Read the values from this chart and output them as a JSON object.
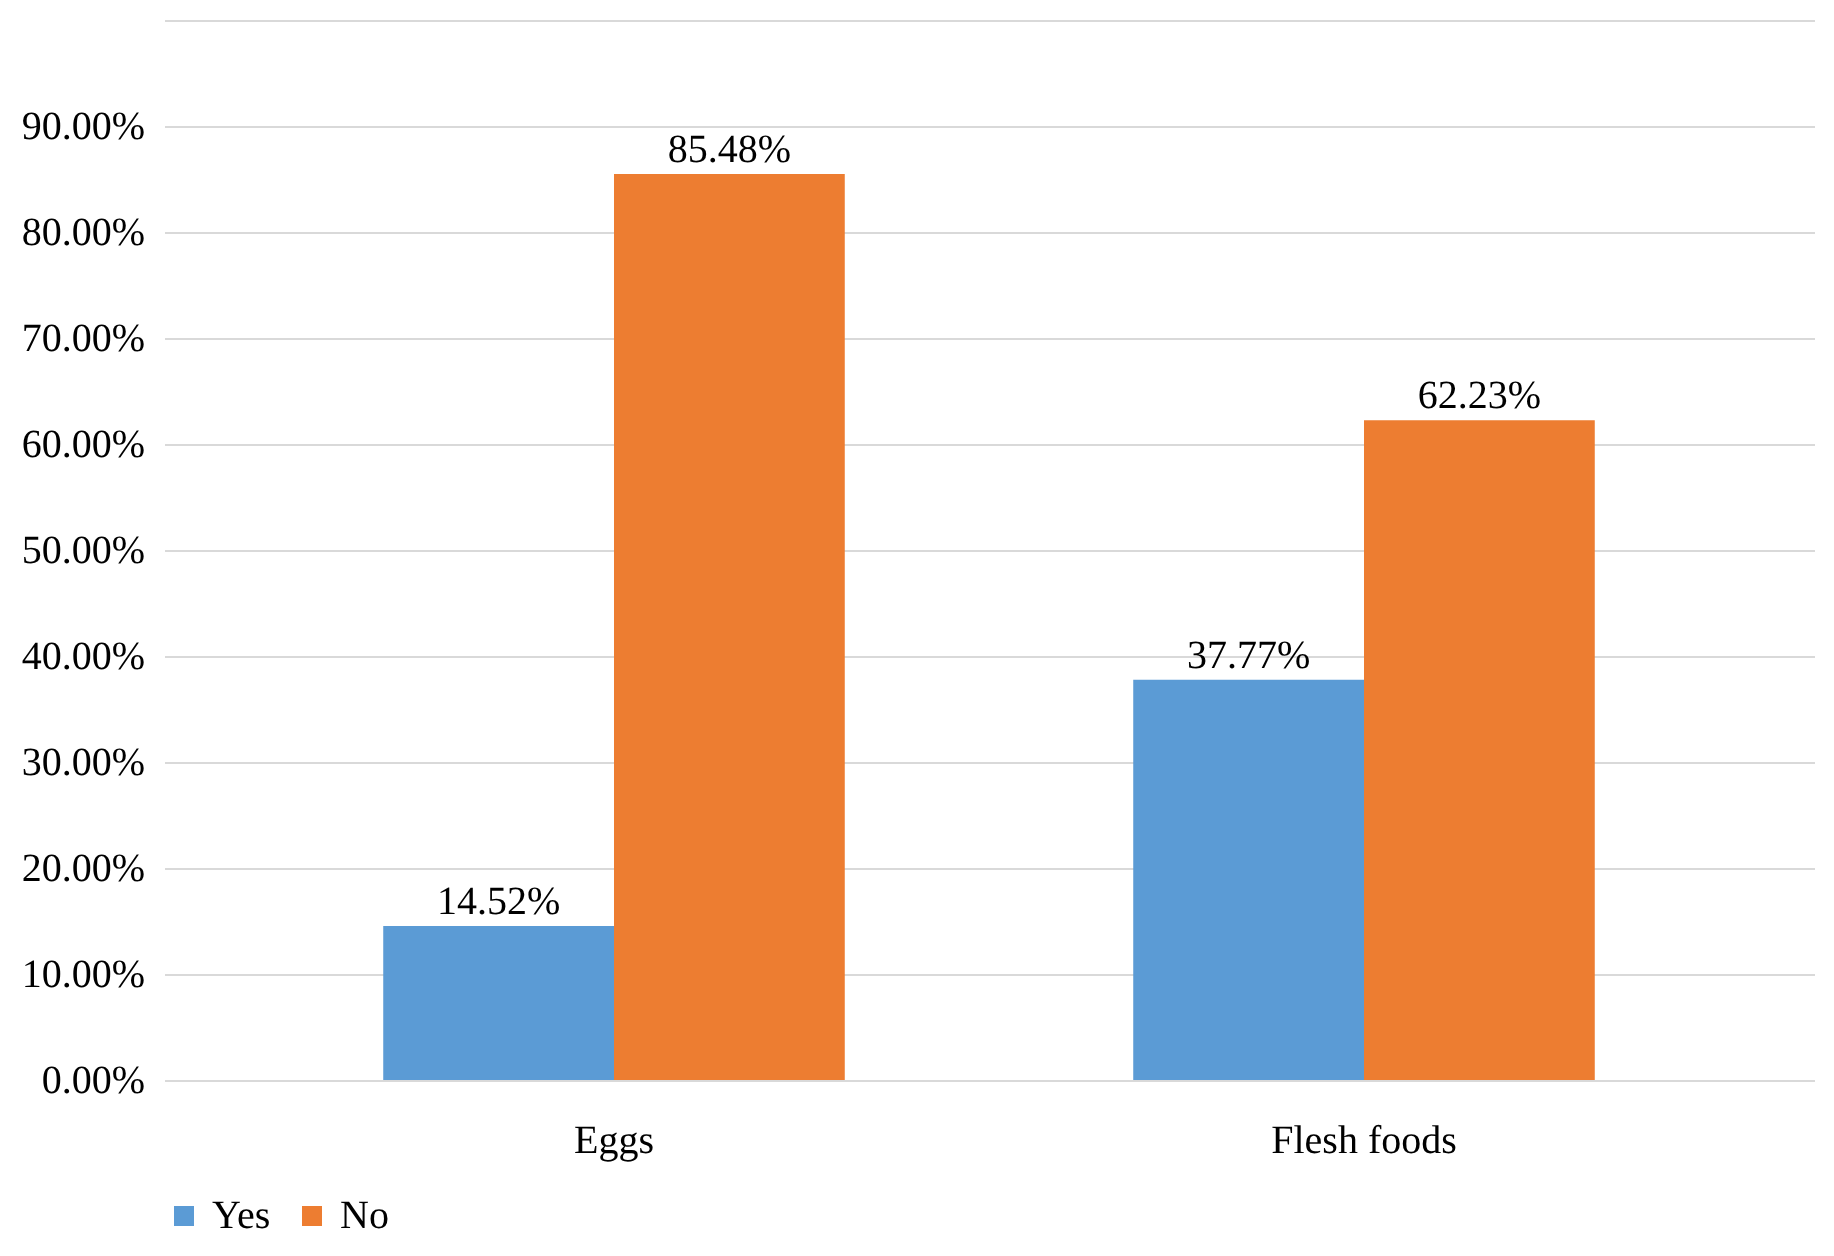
{
  "chart_data": {
    "type": "bar",
    "categories": [
      "Eggs",
      "Flesh foods"
    ],
    "series": [
      {
        "name": "Yes",
        "color": "#5b9bd5",
        "values": [
          14.52,
          37.77
        ],
        "value_labels": [
          "14.52%",
          "37.77%"
        ]
      },
      {
        "name": "No",
        "color": "#ed7d31",
        "values": [
          85.48,
          62.23
        ],
        "value_labels": [
          "85.48%",
          "62.23%"
        ]
      }
    ],
    "ylim": [
      0,
      100
    ],
    "yticks": [
      {
        "value": 0,
        "label": "0.00%"
      },
      {
        "value": 10,
        "label": "10.00%"
      },
      {
        "value": 20,
        "label": "20.00%"
      },
      {
        "value": 30,
        "label": "30.00%"
      },
      {
        "value": 40,
        "label": "40.00%"
      },
      {
        "value": 50,
        "label": "50.00%"
      },
      {
        "value": 60,
        "label": "60.00%"
      },
      {
        "value": 70,
        "label": "70.00%"
      },
      {
        "value": 80,
        "label": "80.00%"
      },
      {
        "value": 90,
        "label": "90.00%"
      },
      {
        "value": 100,
        "label": null
      }
    ],
    "grid": "y",
    "legend": "bottom"
  }
}
